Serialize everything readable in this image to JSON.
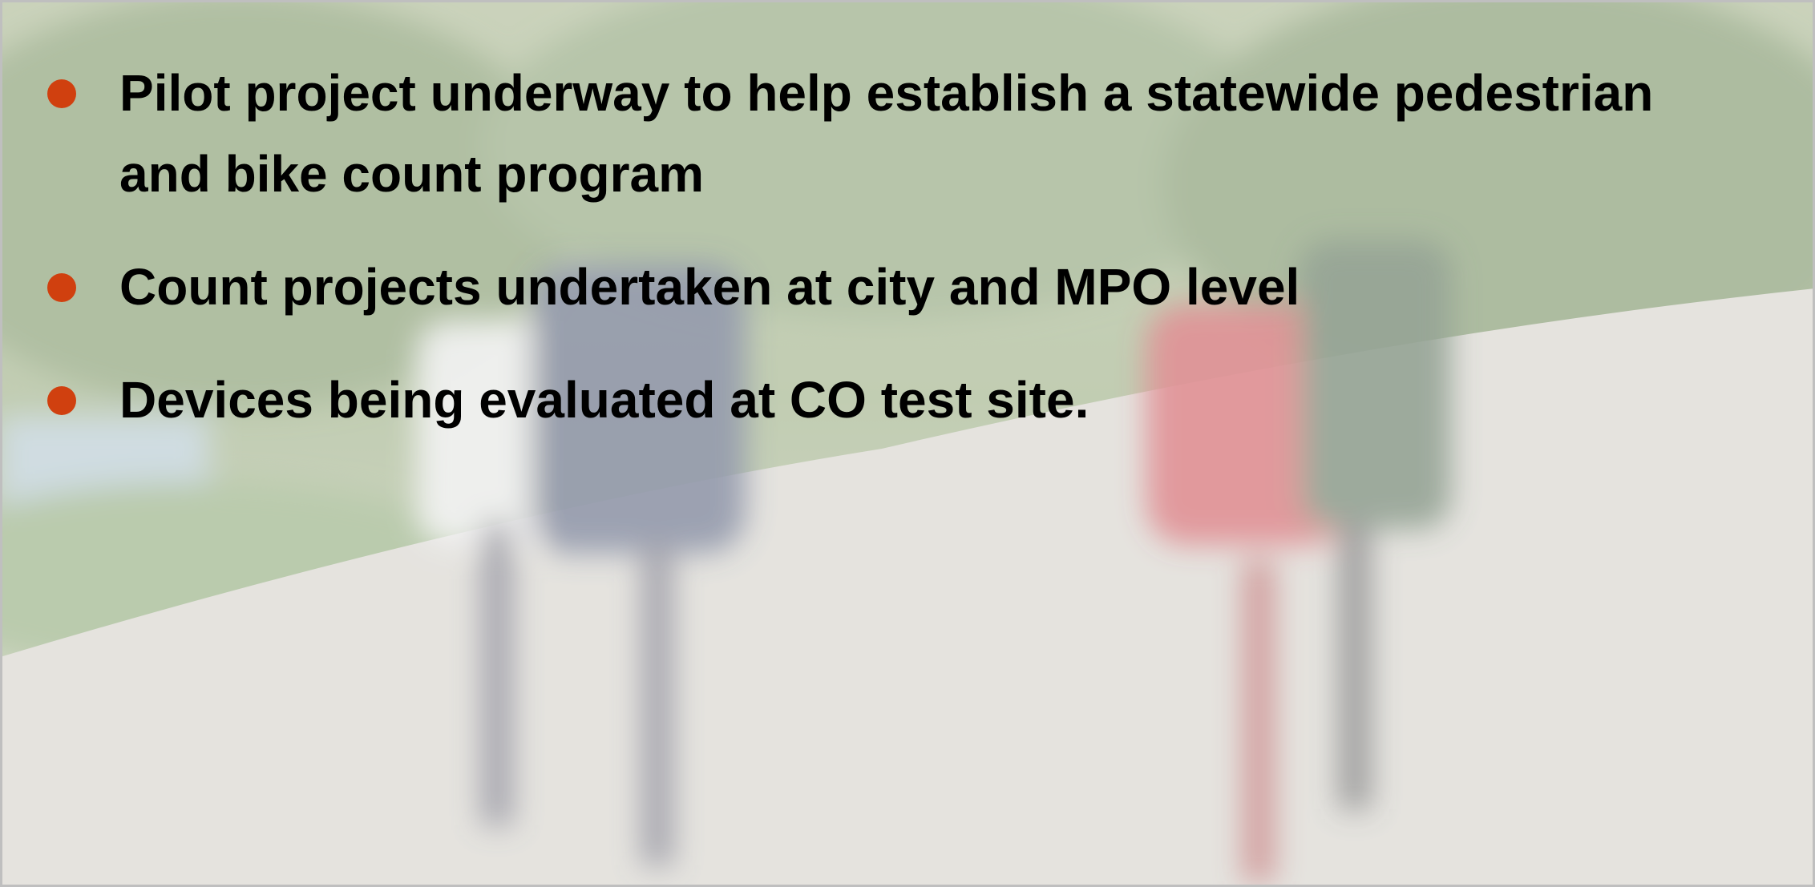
{
  "bullets": [
    "Pilot project underway to help establish a statewide pedestrian and bike count program",
    "Count projects undertaken at city and MPO level",
    "Devices being evaluated at CO test site."
  ]
}
